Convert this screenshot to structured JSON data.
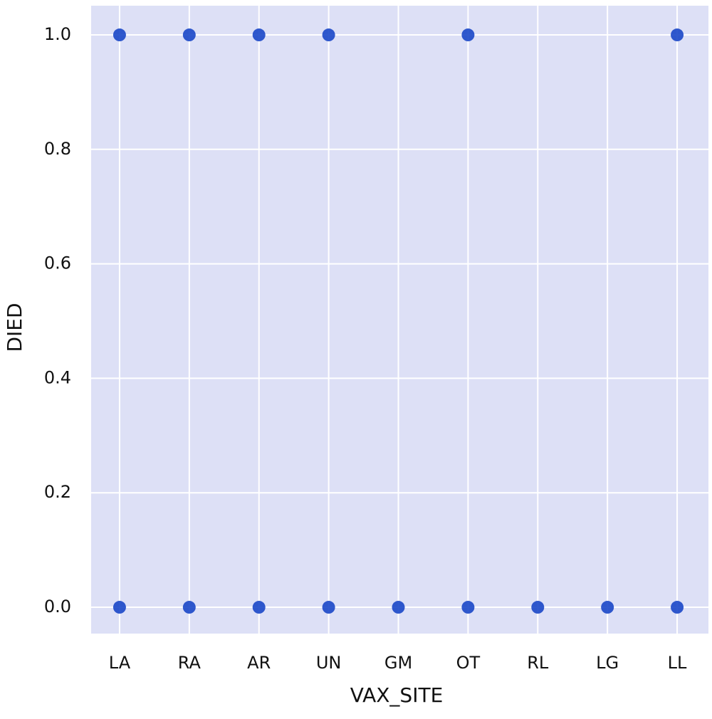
{
  "chart_data": {
    "type": "scatter",
    "x_label": "VAX_SITE",
    "y_label": "DIED",
    "categories": [
      "LA",
      "RA",
      "AR",
      "UN",
      "GM",
      "OT",
      "RL",
      "LG",
      "LL"
    ],
    "series": [
      {
        "color": "#1a47c8",
        "x": [
          "LA",
          "LA",
          "RA",
          "RA",
          "AR",
          "AR",
          "UN",
          "UN",
          "GM",
          "OT",
          "OT",
          "RL",
          "LG",
          "LL",
          "LL"
        ],
        "values": [
          1,
          0,
          1,
          0,
          1,
          0,
          1,
          0,
          0,
          1,
          0,
          0,
          0,
          1,
          0
        ]
      }
    ],
    "ylim": [
      -0.046,
      1.051
    ],
    "yticks": [
      {
        "value": 0,
        "label": "0.0"
      },
      0.2,
      0.4,
      0.6,
      0.8,
      {
        "value": 1,
        "label": "1.0"
      }
    ],
    "grid": true
  }
}
